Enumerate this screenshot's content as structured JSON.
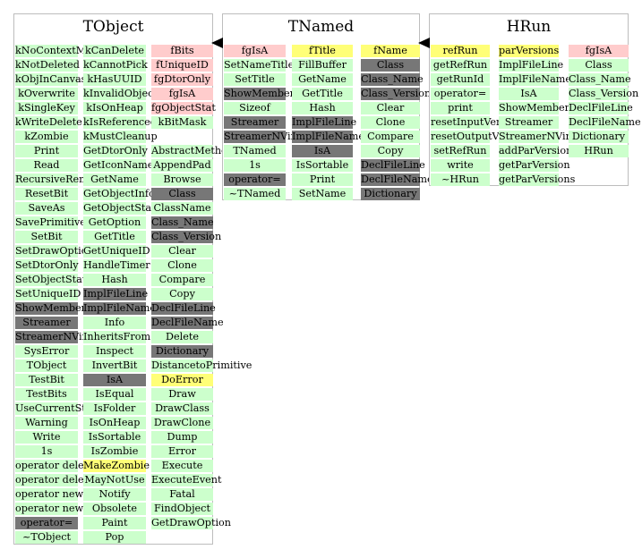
{
  "colors": {
    "green": "#ccffcc",
    "yellow": "#ffff77",
    "pink": "#ffcccc",
    "dark": "#777777"
  },
  "panels": [
    {
      "title": "TObject",
      "columns": [
        {
          "cells": [
            {
              "t": "kNoContextMenu",
              "c": "g"
            },
            {
              "t": "kNotDeleted",
              "c": "g"
            },
            {
              "t": "kObjInCanvas",
              "c": "g"
            },
            {
              "t": "kOverwrite",
              "c": "g"
            },
            {
              "t": "kSingleKey",
              "c": "g"
            },
            {
              "t": "kWriteDelete",
              "c": "g"
            },
            {
              "t": "kZombie",
              "c": "g"
            },
            {
              "t": "Print",
              "c": "g"
            },
            {
              "t": "Read",
              "c": "g"
            },
            {
              "t": "RecursiveRemove",
              "c": "g"
            },
            {
              "t": "ResetBit",
              "c": "g"
            },
            {
              "t": "SaveAs",
              "c": "g"
            },
            {
              "t": "SavePrimitive",
              "c": "g"
            },
            {
              "t": "SetBit",
              "c": "g"
            },
            {
              "t": "SetDrawOption",
              "c": "g"
            },
            {
              "t": "SetDtorOnly",
              "c": "g"
            },
            {
              "t": "SetObjectStat",
              "c": "g"
            },
            {
              "t": "SetUniqueID",
              "c": "g"
            },
            {
              "t": "ShowMembers",
              "c": "d"
            },
            {
              "t": "Streamer",
              "c": "d"
            },
            {
              "t": "StreamerNVirtual",
              "c": "d"
            },
            {
              "t": "SysError",
              "c": "g"
            },
            {
              "t": "TObject",
              "c": "g"
            },
            {
              "t": "TestBit",
              "c": "g"
            },
            {
              "t": "TestBits",
              "c": "g"
            },
            {
              "t": "UseCurrentStyle",
              "c": "g"
            },
            {
              "t": "Warning",
              "c": "g"
            },
            {
              "t": "Write",
              "c": "g"
            },
            {
              "t": "1s",
              "c": "g"
            },
            {
              "t": "operator delete",
              "c": "g"
            },
            {
              "t": "operator delete[]",
              "c": "g"
            },
            {
              "t": "operator new",
              "c": "g"
            },
            {
              "t": "operator new[]",
              "c": "g"
            },
            {
              "t": "operator=",
              "c": "d"
            },
            {
              "t": "~TObject",
              "c": "g"
            }
          ]
        },
        {
          "cells": [
            {
              "t": "kCanDelete",
              "c": "g"
            },
            {
              "t": "kCannotPick",
              "c": "g"
            },
            {
              "t": "kHasUUID",
              "c": "g"
            },
            {
              "t": "kInvalidObject",
              "c": "g"
            },
            {
              "t": "kIsOnHeap",
              "c": "g"
            },
            {
              "t": "kIsReferenced",
              "c": "g"
            },
            {
              "t": "kMustCleanup",
              "c": "g"
            },
            {
              "t": "GetDtorOnly",
              "c": "g"
            },
            {
              "t": "GetIconName",
              "c": "g"
            },
            {
              "t": "GetName",
              "c": "g"
            },
            {
              "t": "GetObjectInfo",
              "c": "g"
            },
            {
              "t": "GetObjectStat",
              "c": "g"
            },
            {
              "t": "GetOption",
              "c": "g"
            },
            {
              "t": "GetTitle",
              "c": "g"
            },
            {
              "t": "GetUniqueID",
              "c": "g"
            },
            {
              "t": "HandleTimer",
              "c": "g"
            },
            {
              "t": "Hash",
              "c": "g"
            },
            {
              "t": "ImplFileLine",
              "c": "d"
            },
            {
              "t": "ImplFileName",
              "c": "d"
            },
            {
              "t": "Info",
              "c": "g"
            },
            {
              "t": "InheritsFrom",
              "c": "g"
            },
            {
              "t": "Inspect",
              "c": "g"
            },
            {
              "t": "InvertBit",
              "c": "g"
            },
            {
              "t": "IsA",
              "c": "d"
            },
            {
              "t": "IsEqual",
              "c": "g"
            },
            {
              "t": "IsFolder",
              "c": "g"
            },
            {
              "t": "IsOnHeap",
              "c": "g"
            },
            {
              "t": "IsSortable",
              "c": "g"
            },
            {
              "t": "IsZombie",
              "c": "g"
            },
            {
              "t": "MakeZombie",
              "c": "y"
            },
            {
              "t": "MayNotUse",
              "c": "g"
            },
            {
              "t": "Notify",
              "c": "g"
            },
            {
              "t": "Obsolete",
              "c": "g"
            },
            {
              "t": "Paint",
              "c": "g"
            },
            {
              "t": "Pop",
              "c": "g"
            }
          ]
        },
        {
          "cells": [
            {
              "t": "fBits",
              "c": "p"
            },
            {
              "t": "fUniqueID",
              "c": "p"
            },
            {
              "t": "fgDtorOnly",
              "c": "p"
            },
            {
              "t": "fgIsA",
              "c": "p"
            },
            {
              "t": "fgObjectStat",
              "c": "p"
            },
            {
              "t": "kBitMask",
              "c": "g"
            },
            {
              "t": "",
              "c": ""
            },
            {
              "t": "AbstractMethod",
              "c": "g"
            },
            {
              "t": "AppendPad",
              "c": "g"
            },
            {
              "t": "Browse",
              "c": "g"
            },
            {
              "t": "Class",
              "c": "d"
            },
            {
              "t": "ClassName",
              "c": "g"
            },
            {
              "t": "Class_Name",
              "c": "d"
            },
            {
              "t": "Class_Version",
              "c": "d"
            },
            {
              "t": "Clear",
              "c": "g"
            },
            {
              "t": "Clone",
              "c": "g"
            },
            {
              "t": "Compare",
              "c": "g"
            },
            {
              "t": "Copy",
              "c": "g"
            },
            {
              "t": "DeclFileLine",
              "c": "d"
            },
            {
              "t": "DeclFileName",
              "c": "d"
            },
            {
              "t": "Delete",
              "c": "g"
            },
            {
              "t": "Dictionary",
              "c": "d"
            },
            {
              "t": "DistancetoPrimitive",
              "c": "g"
            },
            {
              "t": "DoError",
              "c": "y"
            },
            {
              "t": "Draw",
              "c": "g"
            },
            {
              "t": "DrawClass",
              "c": "g"
            },
            {
              "t": "DrawClone",
              "c": "g"
            },
            {
              "t": "Dump",
              "c": "g"
            },
            {
              "t": "Error",
              "c": "g"
            },
            {
              "t": "Execute",
              "c": "g"
            },
            {
              "t": "ExecuteEvent",
              "c": "g"
            },
            {
              "t": "Fatal",
              "c": "g"
            },
            {
              "t": "FindObject",
              "c": "g"
            },
            {
              "t": "GetDrawOption",
              "c": "g"
            }
          ]
        }
      ]
    },
    {
      "title": "TNamed",
      "columns": [
        {
          "cells": [
            {
              "t": "fgIsA",
              "c": "p"
            },
            {
              "t": "SetNameTitle",
              "c": "g"
            },
            {
              "t": "SetTitle",
              "c": "g"
            },
            {
              "t": "ShowMembers",
              "c": "d"
            },
            {
              "t": "Sizeof",
              "c": "g"
            },
            {
              "t": "Streamer",
              "c": "d"
            },
            {
              "t": "StreamerNVirtual",
              "c": "d"
            },
            {
              "t": "TNamed",
              "c": "g"
            },
            {
              "t": "1s",
              "c": "g"
            },
            {
              "t": "operator=",
              "c": "d"
            },
            {
              "t": "~TNamed",
              "c": "g"
            }
          ]
        },
        {
          "cells": [
            {
              "t": "fTitle",
              "c": "y"
            },
            {
              "t": "FillBuffer",
              "c": "g"
            },
            {
              "t": "GetName",
              "c": "g"
            },
            {
              "t": "GetTitle",
              "c": "g"
            },
            {
              "t": "Hash",
              "c": "g"
            },
            {
              "t": "ImplFileLine",
              "c": "d"
            },
            {
              "t": "ImplFileName",
              "c": "d"
            },
            {
              "t": "IsA",
              "c": "d"
            },
            {
              "t": "IsSortable",
              "c": "g"
            },
            {
              "t": "Print",
              "c": "g"
            },
            {
              "t": "SetName",
              "c": "g"
            }
          ]
        },
        {
          "cells": [
            {
              "t": "fName",
              "c": "y"
            },
            {
              "t": "Class",
              "c": "d"
            },
            {
              "t": "Class_Name",
              "c": "d"
            },
            {
              "t": "Class_Version",
              "c": "d"
            },
            {
              "t": "Clear",
              "c": "g"
            },
            {
              "t": "Clone",
              "c": "g"
            },
            {
              "t": "Compare",
              "c": "g"
            },
            {
              "t": "Copy",
              "c": "g"
            },
            {
              "t": "DeclFileLine",
              "c": "d"
            },
            {
              "t": "DeclFileName",
              "c": "d"
            },
            {
              "t": "Dictionary",
              "c": "d"
            }
          ]
        }
      ]
    },
    {
      "title": "HRun",
      "columns": [
        {
          "cells": [
            {
              "t": "refRun",
              "c": "y"
            },
            {
              "t": "getRefRun",
              "c": "g"
            },
            {
              "t": "getRunId",
              "c": "g"
            },
            {
              "t": "operator=",
              "c": "g"
            },
            {
              "t": "print",
              "c": "g"
            },
            {
              "t": "resetInputVersions",
              "c": "g"
            },
            {
              "t": "resetOutputVersions",
              "c": "g"
            },
            {
              "t": "setRefRun",
              "c": "g"
            },
            {
              "t": "write",
              "c": "g"
            },
            {
              "t": "~HRun",
              "c": "g"
            }
          ]
        },
        {
          "cells": [
            {
              "t": "parVersions",
              "c": "y"
            },
            {
              "t": "ImplFileLine",
              "c": "g"
            },
            {
              "t": "ImplFileName",
              "c": "g"
            },
            {
              "t": "IsA",
              "c": "g"
            },
            {
              "t": "ShowMembers",
              "c": "g"
            },
            {
              "t": "Streamer",
              "c": "g"
            },
            {
              "t": "StreamerNVirtual",
              "c": "g"
            },
            {
              "t": "addParVersion",
              "c": "g"
            },
            {
              "t": "getParVersion",
              "c": "g"
            },
            {
              "t": "getParVersions",
              "c": "g"
            }
          ]
        },
        {
          "cells": [
            {
              "t": "fgIsA",
              "c": "p"
            },
            {
              "t": "Class",
              "c": "g"
            },
            {
              "t": "Class_Name",
              "c": "g"
            },
            {
              "t": "Class_Version",
              "c": "g"
            },
            {
              "t": "DeclFileLine",
              "c": "g"
            },
            {
              "t": "DeclFileName",
              "c": "g"
            },
            {
              "t": "Dictionary",
              "c": "g"
            },
            {
              "t": "HRun",
              "c": "g"
            }
          ]
        }
      ]
    }
  ]
}
